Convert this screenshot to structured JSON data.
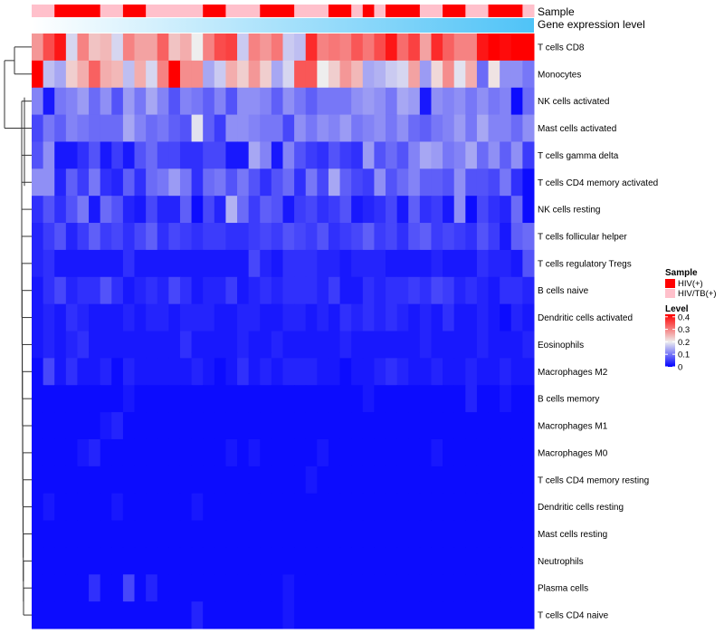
{
  "chart_data": {
    "type": "heatmap",
    "title": "",
    "annotation_labels": {
      "sample": "Sample",
      "expression": "Gene expression level"
    },
    "rows": [
      "T cells CD8",
      "Monocytes",
      "NK cells activated",
      "Mast cells activated",
      "T cells gamma delta",
      "T cells CD4 memory activated",
      "NK cells resting",
      "T cells follicular helper",
      "T cells regulatory  Tregs",
      "B cells naive",
      "Dendritic cells activated",
      "Eosinophils",
      "Macrophages M2",
      "B cells memory",
      "Macrophages M1",
      "Macrophages M0",
      "T cells CD4 memory resting",
      "Dendritic cells resting",
      "Mast cells resting",
      "Neutrophils",
      "Plasma cells",
      "T cells CD4 naive"
    ],
    "n_columns": 44,
    "sample_groups": [
      "HIV/TB(+)",
      "HIV/TB(+)",
      "HIV(+)",
      "HIV(+)",
      "HIV(+)",
      "HIV(+)",
      "HIV/TB(+)",
      "HIV/TB(+)",
      "HIV(+)",
      "HIV(+)",
      "HIV/TB(+)",
      "HIV/TB(+)",
      "HIV/TB(+)",
      "HIV/TB(+)",
      "HIV/TB(+)",
      "HIV(+)",
      "HIV(+)",
      "HIV/TB(+)",
      "HIV/TB(+)",
      "HIV/TB(+)",
      "HIV(+)",
      "HIV(+)",
      "HIV(+)",
      "HIV/TB(+)",
      "HIV/TB(+)",
      "HIV/TB(+)",
      "HIV(+)",
      "HIV(+)",
      "HIV/TB(+)",
      "HIV(+)",
      "HIV/TB(+)",
      "HIV(+)",
      "HIV(+)",
      "HIV(+)",
      "HIV/TB(+)",
      "HIV/TB(+)",
      "HIV(+)",
      "HIV(+)",
      "HIV/TB(+)",
      "HIV/TB(+)",
      "HIV(+)",
      "HIV(+)",
      "HIV(+)",
      "HIV/TB(+)"
    ],
    "values": [
      [
        0.28,
        0.35,
        0.4,
        0.18,
        0.3,
        0.24,
        0.25,
        0.18,
        0.3,
        0.27,
        0.27,
        0.33,
        0.24,
        0.26,
        0.2,
        0.3,
        0.35,
        0.36,
        0.17,
        0.3,
        0.28,
        0.31,
        0.17,
        0.16,
        0.38,
        0.3,
        0.31,
        0.3,
        0.34,
        0.31,
        0.35,
        0.4,
        0.32,
        0.36,
        0.27,
        0.38,
        0.33,
        0.3,
        0.3,
        0.4,
        0.42,
        0.41,
        0.42,
        0.42
      ],
      [
        0.42,
        0.16,
        0.14,
        0.23,
        0.26,
        0.33,
        0.26,
        0.25,
        0.16,
        0.26,
        0.18,
        0.3,
        0.42,
        0.29,
        0.29,
        0.14,
        0.17,
        0.26,
        0.23,
        0.28,
        0.23,
        0.14,
        0.18,
        0.34,
        0.34,
        0.2,
        0.23,
        0.28,
        0.25,
        0.14,
        0.15,
        0.17,
        0.18,
        0.27,
        0.13,
        0.22,
        0.29,
        0.19,
        0.26,
        0.09,
        0.21,
        0.12,
        0.12,
        0.1
      ],
      [
        0.11,
        0.02,
        0.1,
        0.11,
        0.13,
        0.09,
        0.12,
        0.07,
        0.13,
        0.1,
        0.14,
        0.11,
        0.07,
        0.11,
        0.1,
        0.08,
        0.11,
        0.07,
        0.12,
        0.12,
        0.11,
        0.08,
        0.12,
        0.1,
        0.08,
        0.1,
        0.1,
        0.1,
        0.12,
        0.13,
        0.12,
        0.1,
        0.14,
        0.13,
        0.02,
        0.12,
        0.11,
        0.12,
        0.1,
        0.12,
        0.1,
        0.11,
        0.01,
        0.09
      ],
      [
        0.06,
        0.1,
        0.08,
        0.11,
        0.1,
        0.09,
        0.09,
        0.09,
        0.14,
        0.11,
        0.09,
        0.1,
        0.08,
        0.07,
        0.19,
        0.08,
        0.05,
        0.12,
        0.12,
        0.11,
        0.1,
        0.1,
        0.06,
        0.12,
        0.1,
        0.12,
        0.11,
        0.13,
        0.1,
        0.11,
        0.12,
        0.1,
        0.12,
        0.09,
        0.08,
        0.1,
        0.11,
        0.13,
        0.1,
        0.14,
        0.11,
        0.11,
        0.09,
        0.12
      ],
      [
        0.07,
        0.12,
        0.02,
        0.02,
        0.04,
        0.07,
        0.02,
        0.05,
        0.02,
        0.07,
        0.09,
        0.06,
        0.06,
        0.04,
        0.04,
        0.06,
        0.06,
        0.02,
        0.02,
        0.14,
        0.11,
        0.02,
        0.11,
        0.07,
        0.05,
        0.04,
        0.07,
        0.05,
        0.04,
        0.13,
        0.07,
        0.09,
        0.07,
        0.11,
        0.14,
        0.13,
        0.1,
        0.11,
        0.14,
        0.09,
        0.12,
        0.08,
        0.12,
        0.05
      ],
      [
        0.12,
        0.12,
        0.03,
        0.08,
        0.05,
        0.1,
        0.04,
        0.03,
        0.08,
        0.04,
        0.09,
        0.1,
        0.13,
        0.1,
        0.04,
        0.09,
        0.1,
        0.07,
        0.1,
        0.07,
        0.04,
        0.07,
        0.09,
        0.04,
        0.1,
        0.06,
        0.14,
        0.08,
        0.06,
        0.05,
        0.12,
        0.07,
        0.09,
        0.11,
        0.08,
        0.08,
        0.07,
        0.12,
        0.07,
        0.07,
        0.06,
        0.1,
        0.04,
        0.01
      ],
      [
        0.04,
        0.07,
        0.04,
        0.07,
        0.1,
        0.02,
        0.09,
        0.07,
        0.03,
        0.02,
        0.06,
        0.03,
        0.03,
        0.08,
        0.01,
        0.06,
        0.03,
        0.15,
        0.09,
        0.05,
        0.08,
        0.07,
        0.02,
        0.05,
        0.06,
        0.04,
        0.05,
        0.07,
        0.02,
        0.03,
        0.04,
        0.06,
        0.02,
        0.08,
        0.04,
        0.05,
        0.02,
        0.12,
        0.01,
        0.06,
        0.04,
        0.03,
        0.09,
        0.01
      ],
      [
        0.03,
        0.05,
        0.07,
        0.03,
        0.05,
        0.08,
        0.05,
        0.06,
        0.04,
        0.06,
        0.08,
        0.04,
        0.06,
        0.05,
        0.04,
        0.05,
        0.05,
        0.04,
        0.04,
        0.05,
        0.06,
        0.05,
        0.07,
        0.06,
        0.05,
        0.07,
        0.04,
        0.05,
        0.06,
        0.08,
        0.05,
        0.06,
        0.04,
        0.07,
        0.08,
        0.05,
        0.06,
        0.05,
        0.04,
        0.07,
        0.05,
        0.02,
        0.08,
        0.09
      ],
      [
        0.03,
        0.04,
        0.02,
        0.02,
        0.02,
        0.02,
        0.02,
        0.02,
        0.04,
        0.02,
        0.02,
        0.02,
        0.02,
        0.02,
        0.02,
        0.02,
        0.02,
        0.02,
        0.02,
        0.06,
        0.03,
        0.02,
        0.04,
        0.04,
        0.04,
        0.03,
        0.03,
        0.02,
        0.03,
        0.03,
        0.03,
        0.02,
        0.02,
        0.02,
        0.02,
        0.03,
        0.02,
        0.02,
        0.02,
        0.04,
        0.03,
        0.03,
        0.02,
        0.07
      ],
      [
        0.02,
        0.04,
        0.06,
        0.03,
        0.04,
        0.04,
        0.07,
        0.04,
        0.02,
        0.03,
        0.04,
        0.03,
        0.06,
        0.04,
        0.02,
        0.03,
        0.03,
        0.05,
        0.02,
        0.03,
        0.04,
        0.03,
        0.04,
        0.04,
        0.04,
        0.03,
        0.05,
        0.02,
        0.02,
        0.04,
        0.03,
        0.04,
        0.04,
        0.05,
        0.04,
        0.06,
        0.05,
        0.03,
        0.04,
        0.03,
        0.02,
        0.04,
        0.04,
        0.03
      ],
      [
        0.02,
        0.03,
        0.02,
        0.04,
        0.03,
        0.02,
        0.02,
        0.02,
        0.03,
        0.02,
        0.03,
        0.03,
        0.02,
        0.03,
        0.03,
        0.03,
        0.02,
        0.02,
        0.03,
        0.03,
        0.02,
        0.02,
        0.03,
        0.03,
        0.02,
        0.03,
        0.02,
        0.04,
        0.03,
        0.04,
        0.03,
        0.04,
        0.03,
        0.02,
        0.03,
        0.02,
        0.04,
        0.02,
        0.02,
        0.03,
        0.02,
        0.01,
        0.03,
        0.02
      ],
      [
        0.02,
        0.03,
        0.02,
        0.03,
        0.04,
        0.02,
        0.02,
        0.02,
        0.02,
        0.02,
        0.02,
        0.02,
        0.02,
        0.04,
        0.02,
        0.02,
        0.02,
        0.02,
        0.03,
        0.02,
        0.02,
        0.03,
        0.02,
        0.02,
        0.02,
        0.02,
        0.02,
        0.03,
        0.02,
        0.02,
        0.02,
        0.02,
        0.02,
        0.02,
        0.03,
        0.02,
        0.02,
        0.02,
        0.02,
        0.03,
        0.02,
        0.02,
        0.02,
        0.03
      ],
      [
        0.01,
        0.06,
        0.02,
        0.04,
        0.02,
        0.02,
        0.03,
        0.01,
        0.03,
        0.02,
        0.02,
        0.02,
        0.02,
        0.02,
        0.03,
        0.02,
        0.01,
        0.02,
        0.04,
        0.02,
        0.03,
        0.02,
        0.03,
        0.03,
        0.03,
        0.02,
        0.02,
        0.01,
        0.02,
        0.02,
        0.03,
        0.04,
        0.03,
        0.02,
        0.02,
        0.03,
        0.02,
        0.02,
        0.03,
        0.02,
        0.02,
        0.03,
        0.02,
        0.02
      ],
      [
        0.01,
        0.01,
        0.01,
        0.01,
        0.01,
        0.01,
        0.01,
        0.01,
        0.02,
        0.01,
        0.01,
        0.01,
        0.01,
        0.01,
        0.01,
        0.01,
        0.01,
        0.01,
        0.01,
        0.01,
        0.01,
        0.01,
        0.01,
        0.01,
        0.01,
        0.01,
        0.01,
        0.01,
        0.01,
        0.02,
        0.01,
        0.01,
        0.01,
        0.01,
        0.01,
        0.01,
        0.01,
        0.01,
        0.03,
        0.01,
        0.01,
        0.02,
        0.01,
        0.01
      ],
      [
        0.01,
        0.01,
        0.01,
        0.01,
        0.01,
        0.01,
        0.02,
        0.03,
        0.01,
        0.01,
        0.01,
        0.01,
        0.01,
        0.01,
        0.01,
        0.01,
        0.01,
        0.01,
        0.01,
        0.01,
        0.01,
        0.01,
        0.01,
        0.01,
        0.01,
        0.01,
        0.01,
        0.01,
        0.01,
        0.01,
        0.01,
        0.01,
        0.01,
        0.01,
        0.01,
        0.01,
        0.01,
        0.01,
        0.01,
        0.01,
        0.01,
        0.01,
        0.01,
        0.01
      ],
      [
        0.01,
        0.01,
        0.01,
        0.01,
        0.02,
        0.03,
        0.01,
        0.01,
        0.01,
        0.01,
        0.01,
        0.01,
        0.01,
        0.01,
        0.01,
        0.01,
        0.01,
        0.02,
        0.01,
        0.02,
        0.01,
        0.01,
        0.01,
        0.01,
        0.01,
        0.02,
        0.01,
        0.01,
        0.01,
        0.01,
        0.01,
        0.01,
        0.01,
        0.01,
        0.01,
        0.02,
        0.01,
        0.01,
        0.01,
        0.01,
        0.01,
        0.01,
        0.01,
        0.01
      ],
      [
        0.01,
        0.01,
        0.01,
        0.01,
        0.01,
        0.01,
        0.01,
        0.01,
        0.01,
        0.01,
        0.01,
        0.01,
        0.01,
        0.01,
        0.01,
        0.01,
        0.01,
        0.01,
        0.01,
        0.01,
        0.01,
        0.01,
        0.01,
        0.01,
        0.02,
        0.01,
        0.01,
        0.01,
        0.01,
        0.01,
        0.01,
        0.01,
        0.01,
        0.01,
        0.01,
        0.01,
        0.01,
        0.01,
        0.01,
        0.01,
        0.01,
        0.01,
        0.01,
        0.01
      ],
      [
        0.01,
        0.02,
        0.01,
        0.01,
        0.01,
        0.01,
        0.01,
        0.02,
        0.01,
        0.01,
        0.01,
        0.01,
        0.01,
        0.01,
        0.02,
        0.01,
        0.01,
        0.01,
        0.01,
        0.01,
        0.01,
        0.01,
        0.01,
        0.01,
        0.01,
        0.01,
        0.01,
        0.01,
        0.01,
        0.01,
        0.01,
        0.01,
        0.01,
        0.01,
        0.01,
        0.01,
        0.01,
        0.01,
        0.01,
        0.01,
        0.01,
        0.01,
        0.01,
        0.01
      ],
      [
        0.01,
        0.01,
        0.01,
        0.01,
        0.01,
        0.01,
        0.01,
        0.01,
        0.01,
        0.01,
        0.01,
        0.01,
        0.01,
        0.01,
        0.01,
        0.01,
        0.01,
        0.01,
        0.01,
        0.01,
        0.01,
        0.01,
        0.01,
        0.01,
        0.01,
        0.01,
        0.01,
        0.01,
        0.01,
        0.01,
        0.01,
        0.01,
        0.01,
        0.01,
        0.01,
        0.01,
        0.01,
        0.01,
        0.01,
        0.01,
        0.01,
        0.01,
        0.01,
        0.01
      ],
      [
        0.01,
        0.01,
        0.01,
        0.01,
        0.01,
        0.01,
        0.01,
        0.01,
        0.01,
        0.01,
        0.01,
        0.01,
        0.01,
        0.01,
        0.01,
        0.01,
        0.01,
        0.01,
        0.01,
        0.01,
        0.01,
        0.01,
        0.01,
        0.01,
        0.01,
        0.01,
        0.01,
        0.01,
        0.01,
        0.01,
        0.01,
        0.01,
        0.01,
        0.01,
        0.01,
        0.01,
        0.01,
        0.01,
        0.01,
        0.01,
        0.01,
        0.01,
        0.01,
        0.01
      ],
      [
        0.01,
        0.01,
        0.01,
        0.01,
        0.01,
        0.04,
        0.01,
        0.01,
        0.06,
        0.01,
        0.03,
        0.01,
        0.01,
        0.01,
        0.01,
        0.01,
        0.01,
        0.01,
        0.01,
        0.01,
        0.01,
        0.01,
        0.02,
        0.01,
        0.01,
        0.01,
        0.01,
        0.01,
        0.01,
        0.01,
        0.01,
        0.01,
        0.01,
        0.01,
        0.01,
        0.01,
        0.01,
        0.01,
        0.01,
        0.01,
        0.01,
        0.01,
        0.01,
        0.01
      ],
      [
        0.01,
        0.01,
        0.01,
        0.01,
        0.01,
        0.01,
        0.01,
        0.01,
        0.01,
        0.01,
        0.01,
        0.01,
        0.01,
        0.01,
        0.03,
        0.01,
        0.01,
        0.01,
        0.01,
        0.01,
        0.01,
        0.01,
        0.02,
        0.01,
        0.01,
        0.01,
        0.01,
        0.01,
        0.01,
        0.01,
        0.01,
        0.01,
        0.01,
        0.01,
        0.01,
        0.01,
        0.01,
        0.01,
        0.01,
        0.01,
        0.01,
        0.01,
        0.01,
        0.01
      ]
    ],
    "color_scale": {
      "low": "#0000FF",
      "mid": "#EEEEEE",
      "high": "#FF0000",
      "domain": [
        0,
        0.2,
        0.42
      ]
    },
    "legend": {
      "sample_title": "Sample",
      "sample_entries": [
        {
          "label": "HIV(+)",
          "color": "#FF0000"
        },
        {
          "label": "HIV/TB(+)",
          "color": "#FFC0CB"
        }
      ],
      "level_title": "Level",
      "level_ticks": [
        "0.4",
        "0.3",
        "0.2",
        "0.1",
        "0"
      ],
      "level_tick_values": [
        0.4,
        0.3,
        0.2,
        0.1,
        0
      ],
      "placement": "right"
    },
    "expression_bar_colors": [
      "#FFFFFF",
      "#4FC3F7"
    ]
  }
}
